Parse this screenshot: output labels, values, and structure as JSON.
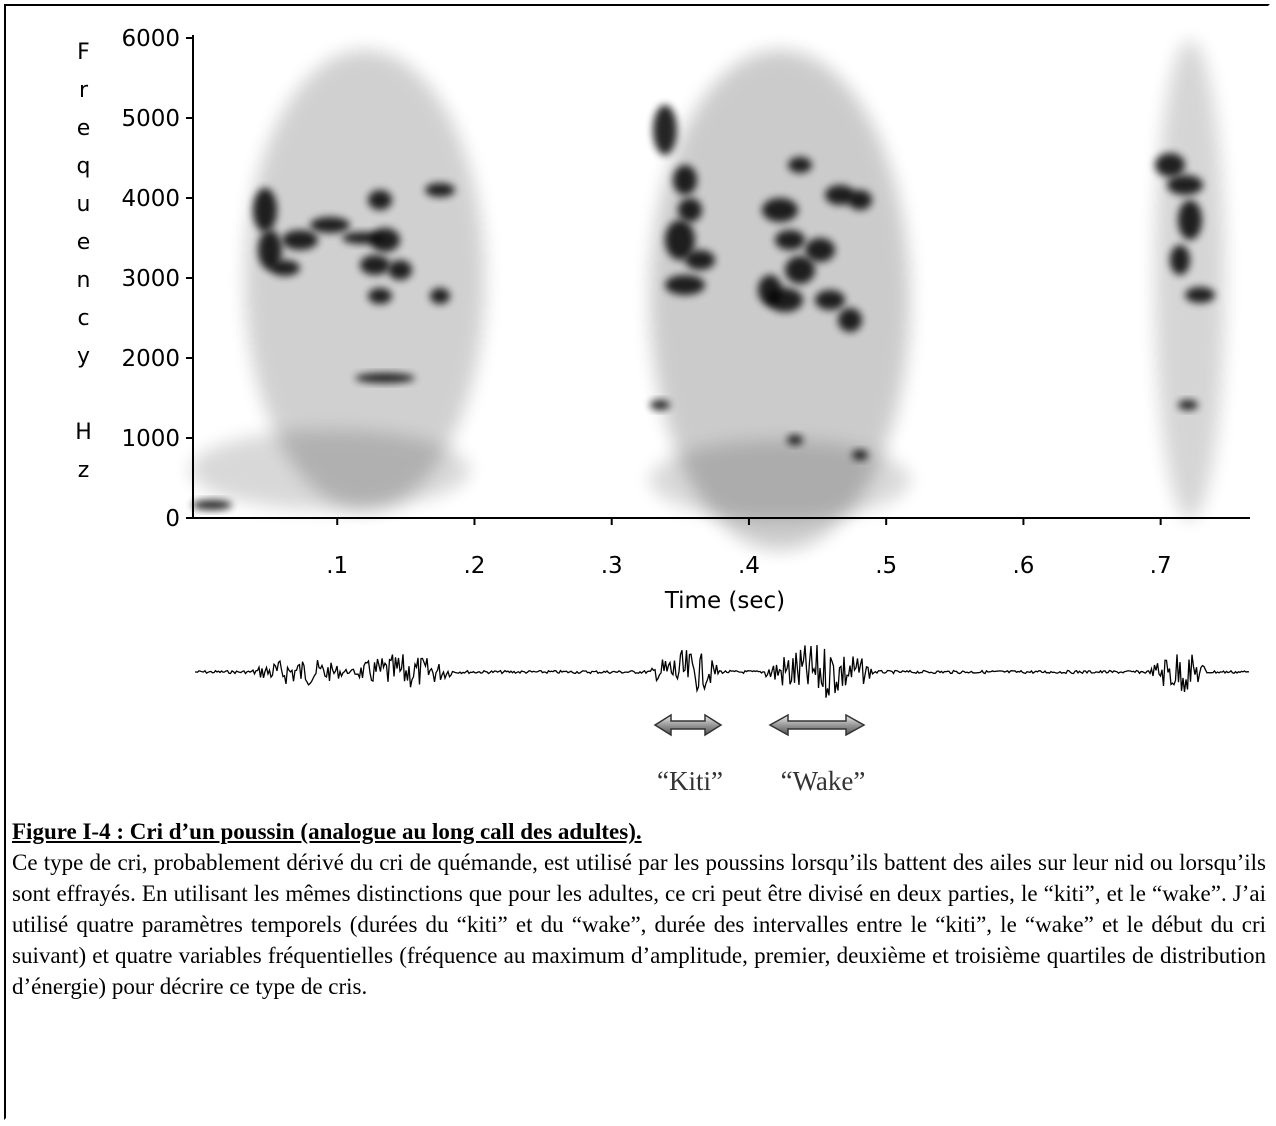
{
  "figure": {
    "y_label": "Frequency Hz",
    "ylim": [
      0,
      6000
    ],
    "yticks": [
      0,
      1000,
      2000,
      3000,
      4000,
      5000,
      6000
    ],
    "xlim": [
      0,
      0.76
    ],
    "xticks": [
      {
        "value": 0.1,
        "label": ".1"
      },
      {
        "value": 0.2,
        "label": ".2"
      },
      {
        "value": 0.3,
        "label": ".3"
      },
      {
        "value": 0.4,
        "label": ".4"
      },
      {
        "value": 0.5,
        "label": ".5"
      },
      {
        "value": 0.6,
        "label": ".6"
      },
      {
        "value": 0.7,
        "label": ".7"
      }
    ],
    "x_label": "Time (sec)",
    "segment_labels": [
      "“Kiti”",
      "“Wake”"
    ]
  },
  "caption": {
    "title": "Figure I-4 : Cri d’un poussin (analogue au long call des adultes).",
    "text": "Ce type de cri, probablement dérivé du cri de quémande, est utilisé par les poussins lorsqu’ils battent des ailes sur leur nid ou lorsqu’ils sont effrayés. En utilisant les mêmes distinctions que pour les adultes, ce cri peut être divisé en deux parties, le “kiti”, et le “wake”. J’ai utilisé quatre paramètres temporels (durées du “kiti” et du “wake”, durée des intervalles entre le “kiti”, le “wake” et le début du cri suivant) et quatre variables fréquentielles (fréquence au maximum d’amplitude, premier, deuxième et troisième quartiles de distribution d’énergie) pour décrire ce type de cris."
  }
}
